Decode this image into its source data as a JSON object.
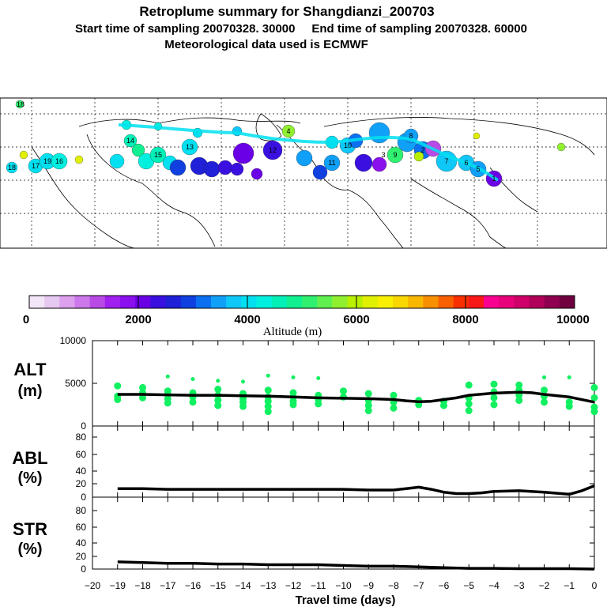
{
  "header": {
    "title": "Retroplume summary for Shangdianzi_200703",
    "line2": "Start time of sampling 20070328. 30000     End time of sampling 20070328. 60000",
    "line3": "Meteorological data used is ECMWF"
  },
  "map": {
    "label_numbers": [
      "18",
      "18",
      "19",
      "17",
      "16",
      "15",
      "14",
      "13",
      "12",
      "11",
      "10",
      "9",
      "8",
      "7",
      "6",
      "5",
      "4",
      "3",
      "2",
      "1"
    ]
  },
  "colorbar": {
    "ticks": [
      "0",
      "2000",
      "4000",
      "6000",
      "8000",
      "10000"
    ],
    "label": "Altitude (m)",
    "colors": [
      "#f2e6f8",
      "#e6c8f0",
      "#dca0ee",
      "#cc78ea",
      "#b84ae6",
      "#a020f0",
      "#8a10ee",
      "#6a00e6",
      "#3a10e0",
      "#2020d8",
      "#1040e0",
      "#0a70f0",
      "#10a0f8",
      "#10c8f8",
      "#00e0f0",
      "#00f0e0",
      "#00f0b8",
      "#10f090",
      "#30f070",
      "#60f050",
      "#90f030",
      "#b8f000",
      "#e0f000",
      "#f8f000",
      "#f8d800",
      "#f8b800",
      "#f89000",
      "#f86000",
      "#f83000",
      "#f81818",
      "#f80090",
      "#e8007a",
      "#d0006a",
      "#b0005a",
      "#900050",
      "#700040"
    ]
  },
  "chart_data": [
    {
      "type": "line",
      "name": "ALT",
      "ylabel": "ALT\n(m)",
      "ylabel_lines": [
        "ALT",
        "(m)"
      ],
      "ylim": [
        0,
        10000
      ],
      "yticks": [
        "10000",
        "5000",
        "0"
      ],
      "x": [
        -19,
        -18,
        -17,
        -16,
        -15,
        -14,
        -13,
        -12,
        -11,
        -10,
        -9,
        -8,
        -7.5,
        -7,
        -6.5,
        -6,
        -5.5,
        -5,
        -4,
        -3,
        -2.5,
        -2,
        -1,
        0
      ],
      "values": [
        3700,
        3700,
        3650,
        3600,
        3600,
        3550,
        3500,
        3400,
        3300,
        3250,
        3200,
        3100,
        2950,
        2850,
        2900,
        3100,
        3300,
        3600,
        3850,
        3950,
        3900,
        3700,
        3400,
        2800
      ],
      "scatter_points": [
        [
          -19,
          3100
        ],
        [
          -19,
          3500
        ],
        [
          -19,
          4700
        ],
        [
          -18,
          3300
        ],
        [
          -18,
          3900
        ],
        [
          -18,
          4500
        ],
        [
          -17,
          2700
        ],
        [
          -17,
          3200
        ],
        [
          -17,
          3700
        ],
        [
          -17,
          4100
        ],
        [
          -17,
          5800
        ],
        [
          -16,
          2800
        ],
        [
          -16,
          3400
        ],
        [
          -16,
          3900
        ],
        [
          -16,
          5500
        ],
        [
          -15,
          2400
        ],
        [
          -15,
          3000
        ],
        [
          -15,
          3600
        ],
        [
          -15,
          4300
        ],
        [
          -15,
          5300
        ],
        [
          -14,
          2300
        ],
        [
          -14,
          2800
        ],
        [
          -14,
          3200
        ],
        [
          -14,
          3800
        ],
        [
          -14,
          5200
        ],
        [
          -13,
          1700
        ],
        [
          -13,
          2300
        ],
        [
          -13,
          2900
        ],
        [
          -13,
          3400
        ],
        [
          -13,
          4200
        ],
        [
          -13,
          5900
        ],
        [
          -12,
          2500
        ],
        [
          -12,
          2900
        ],
        [
          -12,
          3400
        ],
        [
          -12,
          3900
        ],
        [
          -12,
          5700
        ],
        [
          -11,
          2600
        ],
        [
          -11,
          3100
        ],
        [
          -11,
          3600
        ],
        [
          -11,
          5600
        ],
        [
          -10,
          3400
        ],
        [
          -10,
          4100
        ],
        [
          -9,
          1800
        ],
        [
          -9,
          2400
        ],
        [
          -9,
          3000
        ],
        [
          -9,
          3800
        ],
        [
          -8,
          2100
        ],
        [
          -8,
          2800
        ],
        [
          -8,
          3600
        ],
        [
          -7,
          2500
        ],
        [
          -7,
          3000
        ],
        [
          -6,
          2400
        ],
        [
          -6,
          2900
        ],
        [
          -5,
          1800
        ],
        [
          -5,
          2600
        ],
        [
          -5,
          3300
        ],
        [
          -5,
          4800
        ],
        [
          -4,
          2500
        ],
        [
          -4,
          3300
        ],
        [
          -4,
          4000
        ],
        [
          -4,
          4900
        ],
        [
          -3,
          3000
        ],
        [
          -3,
          3600
        ],
        [
          -3,
          4200
        ],
        [
          -3,
          4800
        ],
        [
          -2,
          2800
        ],
        [
          -2,
          3500
        ],
        [
          -2,
          4200
        ],
        [
          -2,
          5700
        ],
        [
          -1,
          2300
        ],
        [
          -1,
          2800
        ],
        [
          -1,
          5700
        ],
        [
          0,
          1700
        ],
        [
          0,
          2200
        ],
        [
          0,
          3300
        ],
        [
          0,
          4500
        ]
      ],
      "scatter_color": "#10f060"
    },
    {
      "type": "line",
      "name": "ABL",
      "ylabel": "ABL\n(%)",
      "ylabel_lines": [
        "ABL",
        "(%)"
      ],
      "ylim": [
        0,
        100
      ],
      "yticks": [
        "80",
        "60",
        "40",
        "20",
        "0"
      ],
      "x": [
        -19,
        -18,
        -17,
        -16,
        -15,
        -14,
        -13,
        -12,
        -11,
        -10,
        -9,
        -8,
        -7.5,
        -7,
        -6.5,
        -6,
        -5.5,
        -5,
        -4.5,
        -4,
        -3,
        -2,
        -1,
        -0.5,
        0
      ],
      "values": [
        12,
        12,
        11,
        11,
        11,
        11,
        11,
        11,
        11,
        11,
        10,
        10,
        12,
        14,
        11,
        7,
        5,
        5,
        6,
        8,
        9,
        7,
        4,
        9,
        16
      ]
    },
    {
      "type": "line",
      "name": "STR",
      "ylabel": "STR\n(%)",
      "ylabel_lines": [
        "STR",
        "(%)"
      ],
      "ylim": [
        0,
        100
      ],
      "yticks": [
        "80",
        "60",
        "40",
        "20",
        "0"
      ],
      "x": [
        -19,
        -18,
        -17,
        -16,
        -15,
        -14,
        -13,
        -12,
        -11,
        -10,
        -9,
        -8,
        -7,
        -6,
        -5,
        -4,
        -3,
        -2,
        -1,
        0
      ],
      "values": [
        10,
        9,
        8,
        8,
        7,
        7,
        6,
        6,
        6,
        5,
        4,
        4,
        3,
        2,
        1,
        1,
        0.5,
        0.5,
        0.5,
        0
      ]
    }
  ],
  "xaxis": {
    "label": "Travel time (days)",
    "ticks": [
      "−20",
      "−19",
      "−18",
      "−17",
      "−16",
      "−15",
      "−14",
      "−13",
      "−12",
      "−11",
      "−10",
      "−9",
      "−8",
      "−7",
      "−6",
      "−5",
      "−4",
      "−3",
      "−2",
      "−1",
      "0"
    ]
  }
}
